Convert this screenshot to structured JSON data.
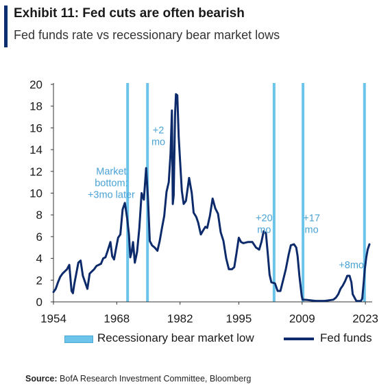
{
  "header": {
    "title": "Exhibit 11: Fed cuts are often bearish",
    "subtitle": "Fed funds rate vs recessionary bear market lows"
  },
  "source": {
    "label": "Source:",
    "text": "BofA Research Investment Committee, Bloomberg"
  },
  "colors": {
    "fed_line": "#0d2a6b",
    "recession_band": "#6cc4ea",
    "annotation_text": "#4aa3d6",
    "axis": "#333333",
    "title_accent": "#0a2e6e"
  },
  "chart_data": {
    "type": "line",
    "title": "Fed funds rate vs recessionary bear market lows",
    "xlabel": "",
    "ylabel": "",
    "xlim": [
      1954,
      2024.5
    ],
    "ylim": [
      0,
      20
    ],
    "x_ticks": [
      1954,
      1968,
      1982,
      1995,
      2009,
      2023
    ],
    "y_ticks": [
      0,
      2,
      4,
      6,
      8,
      10,
      12,
      14,
      16,
      18,
      20
    ],
    "grid": false,
    "legend_position": "bottom",
    "legend": [
      "Recessionary bear market low",
      "Fed funds"
    ],
    "recession_bear_market_lows": [
      1970.4,
      1974.8,
      2002.8,
      2009.2,
      2022.8
    ],
    "annotations": [
      {
        "text": [
          "Market",
          "bottom:",
          "+3mo later"
        ],
        "x": 1966.8,
        "y": 11.7
      },
      {
        "text": [
          "+2",
          "mo"
        ],
        "x": 1977.2,
        "y": 15.5
      },
      {
        "text": [
          "+20",
          "mo"
        ],
        "x": 2000.6,
        "y": 7.4
      },
      {
        "text": [
          "+17",
          "mo"
        ],
        "x": 2011.1,
        "y": 7.4
      },
      {
        "text": [
          "+8mo"
        ],
        "x": 2019.9,
        "y": 3.1
      }
    ],
    "series": [
      {
        "name": "Fed funds",
        "x": [
          1954.0,
          1954.5,
          1955.0,
          1955.5,
          1956.0,
          1956.5,
          1957.0,
          1957.5,
          1958.0,
          1958.3,
          1958.6,
          1959.0,
          1959.5,
          1960.0,
          1960.5,
          1961.0,
          1961.5,
          1962.0,
          1962.5,
          1963.0,
          1963.5,
          1964.0,
          1964.5,
          1965.0,
          1965.5,
          1966.0,
          1966.6,
          1967.0,
          1967.4,
          1967.8,
          1968.3,
          1968.8,
          1969.3,
          1969.8,
          1970.3,
          1970.7,
          1971.0,
          1971.3,
          1971.6,
          1972.0,
          1972.5,
          1973.0,
          1973.5,
          1974.0,
          1974.5,
          1974.9,
          1975.3,
          1975.8,
          1976.4,
          1977.0,
          1977.5,
          1978.0,
          1978.5,
          1979.0,
          1979.5,
          1979.9,
          1980.2,
          1980.4,
          1980.6,
          1980.9,
          1981.1,
          1981.4,
          1981.7,
          1982.0,
          1982.4,
          1982.8,
          1983.3,
          1984.0,
          1984.6,
          1985.0,
          1985.6,
          1986.0,
          1986.6,
          1987.0,
          1987.6,
          1988.0,
          1988.6,
          1989.2,
          1989.8,
          1990.4,
          1991.0,
          1991.6,
          1992.2,
          1992.8,
          1993.5,
          1994.0,
          1994.5,
          1995.0,
          1995.5,
          1996.0,
          1997.0,
          1998.0,
          1998.8,
          1999.5,
          2000.0,
          2000.5,
          2001.0,
          2001.4,
          2001.8,
          2002.2,
          2003.0,
          2003.6,
          2004.2,
          2004.8,
          2005.4,
          2006.0,
          2006.5,
          2007.2,
          2007.7,
          2008.0,
          2008.4,
          2008.9,
          2009.1,
          2010.0,
          2012.0,
          2014.0,
          2015.9,
          2016.5,
          2017.0,
          2017.5,
          2018.0,
          2018.5,
          2019.0,
          2019.5,
          2019.9,
          2020.2,
          2021.0,
          2022.0,
          2022.3,
          2022.6,
          2022.9,
          2023.2,
          2023.5,
          2023.9
        ],
        "y": [
          0.9,
          1.2,
          1.8,
          2.3,
          2.6,
          2.8,
          3.0,
          3.4,
          1.0,
          0.8,
          1.6,
          2.5,
          3.6,
          3.8,
          2.4,
          1.8,
          1.2,
          2.6,
          2.8,
          3.0,
          3.3,
          3.4,
          3.5,
          4.0,
          4.1,
          4.7,
          5.5,
          4.2,
          3.9,
          4.8,
          5.9,
          6.2,
          8.5,
          9.1,
          7.7,
          6.2,
          4.1,
          4.6,
          5.5,
          3.6,
          4.6,
          6.8,
          10.0,
          9.4,
          12.3,
          9.5,
          5.6,
          5.2,
          5.0,
          4.7,
          5.6,
          6.8,
          7.9,
          10.1,
          11.0,
          13.6,
          17.6,
          9.0,
          9.8,
          17.2,
          19.1,
          19.0,
          15.2,
          13.0,
          10.2,
          9.0,
          9.3,
          11.4,
          10.0,
          8.2,
          7.8,
          7.3,
          6.2,
          6.5,
          6.9,
          6.8,
          7.9,
          9.5,
          8.6,
          8.1,
          6.4,
          5.6,
          4.0,
          3.0,
          3.0,
          3.2,
          4.5,
          5.9,
          5.5,
          5.4,
          5.5,
          5.5,
          5.0,
          4.8,
          5.5,
          6.5,
          6.3,
          4.5,
          2.5,
          1.8,
          1.7,
          1.0,
          1.0,
          2.0,
          3.0,
          4.3,
          5.2,
          5.3,
          5.0,
          4.2,
          2.4,
          0.6,
          0.2,
          0.18,
          0.09,
          0.09,
          0.2,
          0.4,
          0.7,
          1.2,
          1.5,
          1.9,
          2.4,
          2.4,
          1.8,
          0.7,
          0.08,
          0.08,
          0.3,
          1.7,
          3.1,
          4.1,
          4.8,
          5.3
        ]
      }
    ]
  }
}
